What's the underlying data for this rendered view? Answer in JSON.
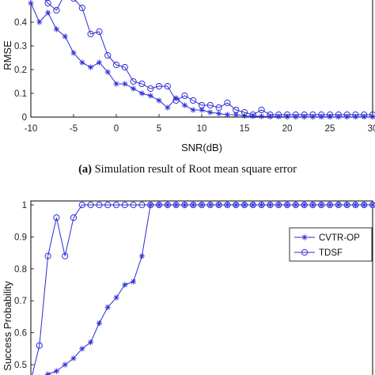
{
  "colors": {
    "series": "#2b2bd6",
    "axis": "#000000",
    "grid": "none"
  },
  "chart_data": [
    {
      "type": "line",
      "xlabel": "SNR(dB)",
      "ylabel": "RMSE",
      "xlim": [
        -10,
        30
      ],
      "ylim": [
        0,
        0.5
      ],
      "x_ticks": [
        "-10",
        "-5",
        "0",
        "5",
        "10",
        "15",
        "20",
        "25",
        "30"
      ],
      "y_ticks": [
        "0",
        "0.1",
        "0.2",
        "0.3",
        "0.4"
      ],
      "caption_bold": "(a)",
      "caption_text": " Simulation result of Root mean square error",
      "grid": false,
      "series": [
        {
          "marker": "star",
          "x": [
            -10,
            -9,
            -8,
            -7,
            -6,
            -5,
            -4,
            -3,
            -2,
            -1,
            0,
            1,
            2,
            3,
            4,
            5,
            6,
            7,
            8,
            9,
            10,
            11,
            12,
            13,
            14,
            15,
            16,
            17,
            18,
            19,
            20,
            21,
            22,
            23,
            24,
            25,
            26,
            27,
            28,
            29,
            30
          ],
          "y": [
            0.48,
            0.4,
            0.44,
            0.37,
            0.34,
            0.27,
            0.23,
            0.21,
            0.23,
            0.19,
            0.14,
            0.14,
            0.12,
            0.1,
            0.09,
            0.07,
            0.04,
            0.08,
            0.05,
            0.03,
            0.03,
            0.02,
            0.015,
            0.01,
            0.01,
            0.005,
            0.004,
            0.003,
            0.002,
            0.002,
            0.001,
            0.001,
            0.001,
            0.001,
            0.001,
            0.001,
            0.001,
            0.001,
            0.001,
            0.001,
            0.001
          ]
        },
        {
          "marker": "circle",
          "x": [
            -10,
            -9,
            -8,
            -7,
            -6,
            -5,
            -4,
            -3,
            -2,
            -1,
            0,
            1,
            2,
            3,
            4,
            5,
            6,
            7,
            8,
            9,
            10,
            11,
            12,
            13,
            14,
            15,
            16,
            17,
            18,
            19,
            20,
            21,
            22,
            23,
            24,
            25,
            26,
            27,
            28,
            29,
            30
          ],
          "y": [
            0.56,
            0.52,
            0.48,
            0.45,
            0.52,
            0.5,
            0.46,
            0.35,
            0.36,
            0.26,
            0.22,
            0.21,
            0.15,
            0.14,
            0.12,
            0.13,
            0.13,
            0.07,
            0.09,
            0.07,
            0.05,
            0.05,
            0.04,
            0.06,
            0.03,
            0.02,
            0.01,
            0.03,
            0.01,
            0.01,
            0.01,
            0.01,
            0.01,
            0.01,
            0.01,
            0.01,
            0.01,
            0.01,
            0.01,
            0.01,
            0.01
          ]
        }
      ]
    },
    {
      "type": "line",
      "xlabel": "",
      "ylabel": "Success Probability",
      "xlim": [
        -10,
        30
      ],
      "ylim": [
        0.45,
        1
      ],
      "y_ticks": [
        "0.5",
        "0.6",
        "0.7",
        "0.8",
        "0.9",
        "1"
      ],
      "legend_position": "top-right",
      "grid": false,
      "series": [
        {
          "name": "CVTR-OP",
          "marker": "star",
          "x": [
            -10,
            -9,
            -8,
            -7,
            -6,
            -5,
            -4,
            -3,
            -2,
            -1,
            0,
            1,
            2,
            3,
            4,
            5,
            6,
            7,
            8,
            9,
            10,
            11,
            12,
            13,
            14,
            15,
            16,
            17,
            18,
            19,
            20,
            21,
            22,
            23,
            24,
            25,
            26,
            27,
            28,
            29,
            30
          ],
          "y": [
            0.44,
            0.46,
            0.47,
            0.48,
            0.5,
            0.52,
            0.55,
            0.57,
            0.63,
            0.68,
            0.71,
            0.75,
            0.76,
            0.84,
            1,
            1,
            1,
            1,
            1,
            1,
            1,
            1,
            1,
            1,
            1,
            1,
            1,
            1,
            1,
            1,
            1,
            1,
            1,
            1,
            1,
            1,
            1,
            1,
            1,
            1,
            1
          ]
        },
        {
          "name": "TDSF",
          "marker": "circle",
          "x": [
            -10,
            -9,
            -8,
            -7,
            -6,
            -5,
            -4,
            -3,
            -2,
            -1,
            0,
            1,
            2,
            3,
            4,
            5,
            6,
            7,
            8,
            9,
            10,
            11,
            12,
            13,
            14,
            15,
            16,
            17,
            18,
            19,
            20,
            21,
            22,
            23,
            24,
            25,
            26,
            27,
            28,
            29,
            30
          ],
          "y": [
            0.45,
            0.56,
            0.84,
            0.96,
            0.84,
            0.96,
            1,
            1,
            1,
            1,
            1,
            1,
            1,
            1,
            1,
            1,
            1,
            1,
            1,
            1,
            1,
            1,
            1,
            1,
            1,
            1,
            1,
            1,
            1,
            1,
            1,
            1,
            1,
            1,
            1,
            1,
            1,
            1,
            1,
            1,
            1
          ]
        }
      ]
    }
  ]
}
